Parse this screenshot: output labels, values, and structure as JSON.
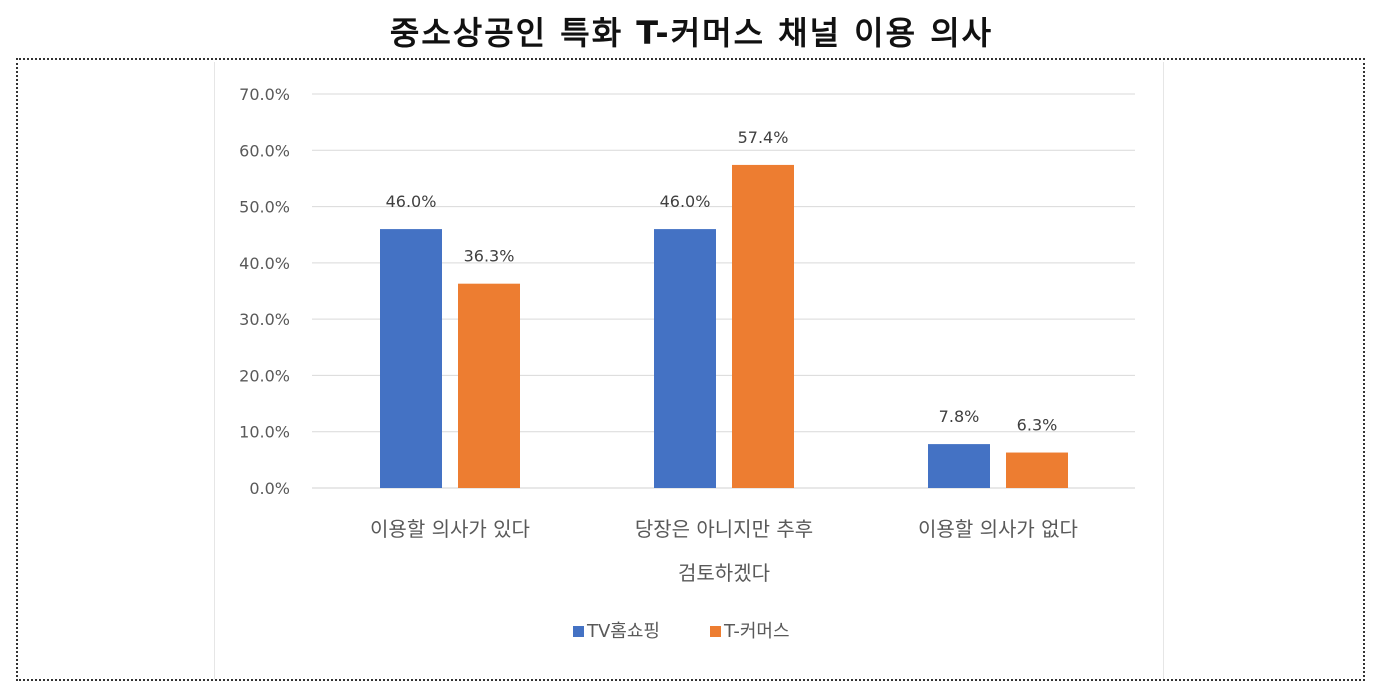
{
  "title": "중소상공인 특화 T-커머스 채널 이용 의사",
  "chart_data": {
    "type": "bar",
    "title": "중소상공인 특화 T-커머스 채널 이용 의사",
    "categories": [
      [
        "이용할 의사가 있다"
      ],
      [
        "당장은 아니지만 추후",
        "검토하겠다"
      ],
      [
        "이용할 의사가 없다"
      ]
    ],
    "series": [
      {
        "name": "TV홈쇼핑",
        "color": "#4472C4",
        "values": [
          46.0,
          46.0,
          7.8
        ],
        "labels": [
          "46.0%",
          "46.0%",
          "7.8%"
        ]
      },
      {
        "name": "T-커머스",
        "color": "#ED7D31",
        "values": [
          36.3,
          57.4,
          6.3
        ],
        "labels": [
          "36.3%",
          "57.4%",
          "6.3%"
        ]
      }
    ],
    "yticks": [
      "0.0%",
      "10.0%",
      "20.0%",
      "30.0%",
      "40.0%",
      "50.0%",
      "60.0%",
      "70.0%"
    ],
    "ylim": [
      0,
      70
    ],
    "grid": true,
    "legend_position": "bottom"
  }
}
